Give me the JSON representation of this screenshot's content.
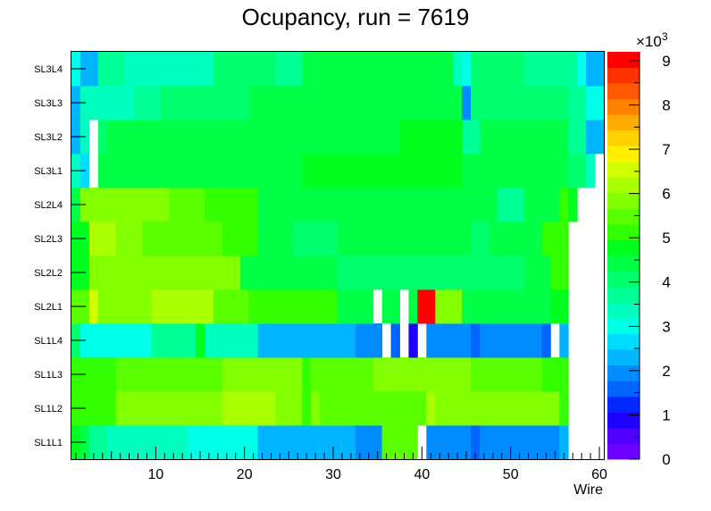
{
  "chart_data": {
    "type": "heatmap",
    "title": "Ocupancy, run = 7619",
    "xlabel": "Wire",
    "ylabel": "",
    "xlim": [
      0.5,
      60.5
    ],
    "x_ticks": [
      10,
      20,
      30,
      40,
      50,
      60
    ],
    "x_tick_labels": [
      "10",
      "20",
      "30",
      "40",
      "50",
      "60"
    ],
    "rows": [
      "SL1L1",
      "SL1L2",
      "SL1L3",
      "SL1L4",
      "SL2L1",
      "SL2L2",
      "SL2L3",
      "SL2L4",
      "SL3L1",
      "SL3L2",
      "SL3L3",
      "SL3L4"
    ],
    "zlim": [
      0,
      9.2
    ],
    "z_multiplier_label": "×10",
    "z_multiplier_exp": "3",
    "z_ticks": [
      0,
      1,
      2,
      3,
      4,
      5,
      6,
      7,
      8,
      9
    ],
    "z_tick_labels": [
      "0",
      "1",
      "2",
      "3",
      "4",
      "5",
      "6",
      "7",
      "8",
      "9"
    ],
    "palette": [
      "#6e00ff",
      "#5000ff",
      "#1e00ff",
      "#0028ff",
      "#0064ff",
      "#008cff",
      "#00b4ff",
      "#00dcff",
      "#00ffe6",
      "#00ffbe",
      "#00ff96",
      "#00ff6e",
      "#00ff46",
      "#00ff1e",
      "#32ff00",
      "#5aff00",
      "#82ff00",
      "#aaff00",
      "#d2ff00",
      "#fff000",
      "#ffd200",
      "#ffaa00",
      "#ff8200",
      "#ff5a00",
      "#ff3200",
      "#ff0000"
    ],
    "segments": [
      [
        [
          0.5,
          1.5,
          4.8
        ],
        [
          1.5,
          2.5,
          4.3
        ],
        [
          2.5,
          4.5,
          3.6
        ],
        [
          4.5,
          13.5,
          3.4
        ],
        [
          13.5,
          15.5,
          3.1
        ],
        [
          15.5,
          21.5,
          3.0
        ],
        [
          21.5,
          32.5,
          2.3
        ],
        [
          32.5,
          35.5,
          2.1
        ],
        [
          35.5,
          39.5,
          5.6
        ],
        [
          39.5,
          40.5,
          -1
        ],
        [
          40.5,
          45.5,
          2.0
        ],
        [
          45.5,
          46.5,
          1.5
        ],
        [
          46.5,
          55.5,
          2.0
        ],
        [
          55.5,
          56.5,
          2.4
        ],
        [
          56.5,
          60.5,
          -1
        ]
      ],
      [
        [
          0.5,
          2.5,
          5.3
        ],
        [
          2.5,
          5.5,
          5.1
        ],
        [
          5.5,
          17.5,
          5.8
        ],
        [
          17.5,
          23.5,
          6.1
        ],
        [
          23.5,
          26.5,
          5.8
        ],
        [
          26.5,
          27.5,
          5.3
        ],
        [
          27.5,
          28.5,
          5.8
        ],
        [
          28.5,
          40.5,
          5.6
        ],
        [
          40.5,
          41.5,
          6.1
        ],
        [
          41.5,
          55.5,
          5.8
        ],
        [
          55.5,
          56.5,
          5.3
        ],
        [
          56.5,
          60.5,
          -1
        ]
      ],
      [
        [
          0.5,
          2.5,
          5.3
        ],
        [
          2.5,
          5.5,
          5.1
        ],
        [
          5.5,
          17.5,
          5.6
        ],
        [
          17.5,
          26.5,
          5.8
        ],
        [
          26.5,
          27.5,
          5.3
        ],
        [
          27.5,
          34.5,
          5.6
        ],
        [
          34.5,
          45.5,
          5.8
        ],
        [
          45.5,
          53.5,
          5.6
        ],
        [
          53.5,
          55.5,
          5.3
        ],
        [
          55.5,
          56.5,
          5.0
        ],
        [
          56.5,
          60.5,
          -1
        ]
      ],
      [
        [
          0.5,
          1.5,
          3.9
        ],
        [
          1.5,
          4.5,
          3.0
        ],
        [
          4.5,
          9.5,
          3.1
        ],
        [
          9.5,
          14.5,
          3.6
        ],
        [
          14.5,
          15.5,
          4.8
        ],
        [
          15.5,
          21.5,
          3.4
        ],
        [
          21.5,
          32.5,
          2.3
        ],
        [
          32.5,
          35.5,
          2.0
        ],
        [
          35.5,
          36.5,
          -1
        ],
        [
          36.5,
          37.5,
          1.7
        ],
        [
          37.5,
          38.5,
          -1
        ],
        [
          38.5,
          39.5,
          1.0
        ],
        [
          39.5,
          40.5,
          -1
        ],
        [
          40.5,
          45.5,
          2.0
        ],
        [
          45.5,
          46.5,
          1.5
        ],
        [
          46.5,
          53.5,
          2.0
        ],
        [
          53.5,
          54.5,
          1.6
        ],
        [
          54.5,
          55.5,
          -1
        ],
        [
          55.5,
          56.5,
          2.3
        ],
        [
          56.5,
          60.5,
          -1
        ]
      ],
      [
        [
          0.5,
          2.5,
          5.6
        ],
        [
          2.5,
          3.5,
          6.5
        ],
        [
          3.5,
          9.5,
          5.8
        ],
        [
          9.5,
          16.5,
          6.1
        ],
        [
          16.5,
          20.5,
          5.6
        ],
        [
          20.5,
          30.5,
          5.1
        ],
        [
          30.5,
          34.5,
          4.4
        ],
        [
          34.5,
          35.5,
          -1
        ],
        [
          35.5,
          37.5,
          4.3
        ],
        [
          37.5,
          38.5,
          -1
        ],
        [
          38.5,
          39.5,
          4.3
        ],
        [
          39.5,
          41.5,
          9.0
        ],
        [
          41.5,
          44.5,
          5.8
        ],
        [
          44.5,
          51.5,
          4.3
        ],
        [
          51.5,
          54.5,
          4.5
        ],
        [
          54.5,
          56.5,
          4.6
        ],
        [
          56.5,
          60.5,
          -1
        ]
      ],
      [
        [
          0.5,
          2.5,
          4.6
        ],
        [
          2.5,
          19.5,
          5.8
        ],
        [
          19.5,
          30.5,
          4.4
        ],
        [
          30.5,
          40.5,
          4.1
        ],
        [
          40.5,
          51.5,
          4.1
        ],
        [
          51.5,
          54.5,
          4.4
        ],
        [
          54.5,
          56.5,
          5.1
        ],
        [
          56.5,
          60.5,
          -1
        ]
      ],
      [
        [
          0.5,
          2.5,
          4.6
        ],
        [
          2.5,
          5.5,
          6.1
        ],
        [
          5.5,
          8.5,
          5.8
        ],
        [
          8.5,
          17.5,
          5.6
        ],
        [
          17.5,
          21.5,
          5.3
        ],
        [
          21.5,
          25.5,
          4.4
        ],
        [
          25.5,
          30.5,
          4.1
        ],
        [
          30.5,
          45.5,
          4.3
        ],
        [
          45.5,
          47.5,
          4.1
        ],
        [
          47.5,
          53.5,
          4.3
        ],
        [
          53.5,
          56.5,
          5.1
        ],
        [
          56.5,
          60.5,
          -1
        ]
      ],
      [
        [
          0.5,
          1.5,
          4.4
        ],
        [
          1.5,
          11.5,
          5.8
        ],
        [
          11.5,
          15.5,
          5.6
        ],
        [
          15.5,
          21.5,
          5.3
        ],
        [
          21.5,
          48.5,
          4.3
        ],
        [
          48.5,
          51.5,
          3.6
        ],
        [
          51.5,
          55.5,
          4.3
        ],
        [
          55.5,
          56.5,
          5.1
        ],
        [
          56.5,
          57.5,
          4.6
        ],
        [
          57.5,
          60.5,
          -1
        ]
      ],
      [
        [
          0.5,
          1.5,
          3.4
        ],
        [
          1.5,
          2.5,
          2.5
        ],
        [
          2.5,
          3.5,
          -1
        ],
        [
          3.5,
          26.5,
          4.5
        ],
        [
          26.5,
          44.5,
          4.6
        ],
        [
          44.5,
          46.5,
          4.4
        ],
        [
          46.5,
          56.5,
          4.5
        ],
        [
          56.5,
          58.5,
          4.1
        ],
        [
          58.5,
          59.5,
          3.4
        ],
        [
          59.5,
          60.5,
          -1
        ]
      ],
      [
        [
          0.5,
          1.5,
          2.4
        ],
        [
          1.5,
          2.5,
          3.4
        ],
        [
          2.5,
          3.5,
          -1
        ],
        [
          3.5,
          4.5,
          3.9
        ],
        [
          4.5,
          37.5,
          4.3
        ],
        [
          37.5,
          44.5,
          4.6
        ],
        [
          44.5,
          46.5,
          3.6
        ],
        [
          46.5,
          56.5,
          4.3
        ],
        [
          56.5,
          58.5,
          3.6
        ],
        [
          58.5,
          60.5,
          2.4
        ]
      ],
      [
        [
          0.5,
          1.5,
          2.3
        ],
        [
          1.5,
          2.5,
          3.4
        ],
        [
          2.5,
          7.5,
          3.4
        ],
        [
          7.5,
          10.5,
          3.6
        ],
        [
          10.5,
          20.5,
          4.1
        ],
        [
          20.5,
          44.5,
          4.3
        ],
        [
          44.5,
          45.5,
          1.8
        ],
        [
          45.5,
          56.5,
          4.1
        ],
        [
          56.5,
          58.5,
          3.6
        ],
        [
          58.5,
          60.5,
          3.1
        ]
      ],
      [
        [
          0.5,
          1.5,
          3.1
        ],
        [
          1.5,
          3.5,
          2.3
        ],
        [
          3.5,
          6.5,
          3.6
        ],
        [
          6.5,
          16.5,
          3.4
        ],
        [
          16.5,
          22.5,
          4.1
        ],
        [
          22.5,
          23.5,
          3.9
        ],
        [
          23.5,
          26.5,
          3.6
        ],
        [
          26.5,
          43.5,
          4.3
        ],
        [
          43.5,
          44.5,
          3.4
        ],
        [
          44.5,
          45.5,
          3.1
        ],
        [
          45.5,
          51.5,
          4.1
        ],
        [
          51.5,
          57.5,
          3.6
        ],
        [
          57.5,
          58.5,
          3.1
        ],
        [
          58.5,
          60.5,
          2.4
        ]
      ]
    ]
  }
}
